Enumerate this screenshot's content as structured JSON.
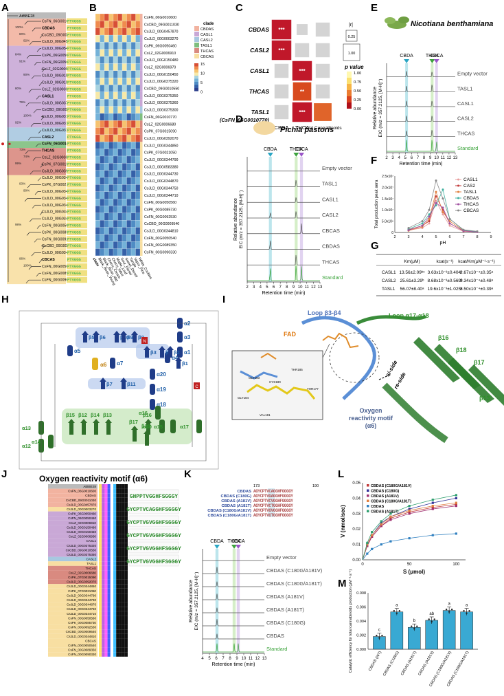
{
  "panels": {
    "A": "A",
    "B": "B",
    "C": "C",
    "D": "D",
    "E": "E",
    "F": "F",
    "G": "G",
    "H": "H",
    "I": "I",
    "J": "J",
    "K": "K",
    "L": "L",
    "M": "M"
  },
  "tree": {
    "outgroup": "AtBBE28",
    "leaves": [
      {
        "label": "CsFN_06G0010600",
        "clade": "CBDAS"
      },
      {
        "label": "CBDAS",
        "clade": "CBDAS"
      },
      {
        "label": "CsCBD_09G0011030",
        "clade": "CBDAS"
      },
      {
        "label": "CsJLD_00G0457870",
        "clade": "CBDAS"
      },
      {
        "label": "CsJLD_00G0542580",
        "clade": "CASL1"
      },
      {
        "label": "CsPK_06G0050460",
        "clade": "CASL1"
      },
      {
        "label": "CsFN_06G0050460",
        "clade": "CASL1"
      },
      {
        "label": "CsLZ_02G0006910",
        "clade": "CASL1"
      },
      {
        "label": "CsJLD_00G0150480",
        "clade": "CASL1"
      },
      {
        "label": "CsJLD_00G0150450",
        "clade": "CASL1"
      },
      {
        "label": "CsLZ_02G0006930",
        "clade": "CASL1"
      },
      {
        "label": "CASL1",
        "clade": "CASL1"
      },
      {
        "label": "CsJLD_00G0375320",
        "clade": "CASL1"
      },
      {
        "label": "CsCBD_09G0010550",
        "clade": "CASL1"
      },
      {
        "label": "CsJLD_00G0375350",
        "clade": "CASL1"
      },
      {
        "label": "CsJLD_00G0375360",
        "clade": "CASL1"
      },
      {
        "label": "CsJLD_00G0375300",
        "clade": "CASL2"
      },
      {
        "label": "CASL2",
        "clade": "CASL2"
      },
      {
        "label": "CsFN_06G0010770",
        "clade": "TASL1"
      },
      {
        "label": "THCAS",
        "clade": "THCAS"
      },
      {
        "label": "CsLZ_02G0006680",
        "clade": "THCAS"
      },
      {
        "label": "CsPK_07G0015090",
        "clade": "THCAS"
      },
      {
        "label": "CsJLD_00G0392070",
        "clade": "THCAS"
      },
      {
        "label": "CsJLD_00G0344850",
        "clade": "CBCAS"
      },
      {
        "label": "CsPK_07G0021050",
        "clade": "CBCAS"
      },
      {
        "label": "CsJLD_00G0344790",
        "clade": "CBCAS"
      },
      {
        "label": "CsJLD_00G0344730",
        "clade": "CBCAS"
      },
      {
        "label": "CsJLD_00G0344870",
        "clade": "CBCAS"
      },
      {
        "label": "CsJLD_00G0344750",
        "clade": "CBCAS"
      },
      {
        "label": "CsJLD_00G0344710",
        "clade": "CBCAS"
      },
      {
        "label": "CsFN_00G0050560",
        "clade": "CBCAS"
      },
      {
        "label": "CsPK_00G0085730",
        "clade": "CBCAS"
      },
      {
        "label": "CsFN_00G0092530",
        "clade": "CBCAS"
      },
      {
        "label": "CsCBD_00G0009540",
        "clade": "CBCAS"
      },
      {
        "label": "CsJLD_00G0344810",
        "clade": "CBCAS"
      },
      {
        "label": "CBCAS",
        "clade": "CBCAS"
      },
      {
        "label": "CsFN_00G0050540",
        "clade": "CBCAS"
      },
      {
        "label": "CsFN_00G0089350",
        "clade": "CBCAS"
      },
      {
        "label": "CsFN_00G0090330",
        "clade": "CBCAS"
      }
    ],
    "bootstrap": [
      "100%",
      "80%",
      "92%",
      "84%",
      "91%",
      "90%",
      "80%",
      "79%",
      "100%",
      "92%",
      "73%",
      "74%",
      "99%",
      "93%",
      "90%",
      "98%",
      "96%",
      "100%"
    ],
    "motif": "PTVGGG"
  },
  "heatmap": {
    "rows": [
      "CsFN_06G0010600",
      "CsCBD_09G0011030",
      "CsJLD_00G0457870",
      "CsJLD_00G0003270",
      "CsPK_06G0050460",
      "CsLZ_02G0006910",
      "CsJLD_00G0150480",
      "CsLZ_02G0006970",
      "CsJLD_00G0150450",
      "CsJLD_00G0375320",
      "CsCBD_09G0010550",
      "CsJLD_00G0375350",
      "CsJLD_00G0375360",
      "CsJLD_00G0375300",
      "CsFN_06G0010770",
      "CsLZ_02G0006680",
      "CsPK_07G0015090",
      "CsJLD_00G0392070",
      "CsJLD_00G0344850",
      "CsPK_07G0021050",
      "CsJLD_00G0344790",
      "CsJLD_00G0583380",
      "CsJLD_00G0344730",
      "CsJLD_00G0344870",
      "CsJLD_00G0344750",
      "CsJLD_00G0344710",
      "CsFN_00G0050560",
      "CsPK_00G0085730",
      "CsFN_00G0092530",
      "CsCBD_00G0009540",
      "CsJLD_00G0344810",
      "CsFN_00G0050540",
      "CsFN_00G0089350",
      "CsFN_00G0090330"
    ],
    "columns": [
      "Black_Bean_Young",
      "Black_Bean_Mid",
      "Cherry_Cream",
      "Cherry_Wine",
      "Maple_Leaf",
      "Sour_Diesel",
      "Sweet_Diesel",
      "Tangie",
      "Vapor_Pine",
      "White_Cookies"
    ],
    "legend_title": "clade",
    "legend_items": [
      "CBDAS",
      "CASL1",
      "CASL2",
      "TASL1",
      "THCAS",
      "CBCAS"
    ],
    "scale_ticks": [
      "15",
      "10",
      "5",
      "0"
    ],
    "clade_colors": {
      "CBDAS": "#f2b3a0",
      "CASL1": "#c9a8d6",
      "CASL2": "#a8c8e0",
      "TASL1": "#7fbf7f",
      "THCAS": "#d98a80",
      "CBCAS": "#f8dfa2"
    }
  },
  "correlation": {
    "rows": [
      "CBDAS",
      "CASL2",
      "CASL1",
      "THCAS",
      "TASL1"
    ],
    "row_note": "(CsFN_06G0010770)",
    "columns": [
      "CBDA",
      "THCA",
      "Total Cannabinoids"
    ],
    "abs_r_label": "|r|",
    "r_ticks": [
      "0.25",
      "1.00"
    ],
    "p_label": "p value",
    "p_ticks": [
      "1.00",
      "0.75",
      "0.50",
      "0.25",
      "0.00"
    ],
    "cells": [
      {
        "row": 0,
        "col": 0,
        "r": 1.0,
        "p": 0.0,
        "stars": "***"
      },
      {
        "row": 0,
        "col": 1,
        "r": 0.3,
        "p": 1.0,
        "stars": ""
      },
      {
        "row": 0,
        "col": 2,
        "r": 0.55,
        "p": 1.0,
        "stars": ""
      },
      {
        "row": 1,
        "col": 0,
        "r": 1.0,
        "p": 0.0,
        "stars": "***"
      },
      {
        "row": 1,
        "col": 1,
        "r": 0.55,
        "p": 1.0,
        "stars": ""
      },
      {
        "row": 1,
        "col": 2,
        "r": 0.55,
        "p": 1.0,
        "stars": ""
      },
      {
        "row": 2,
        "col": 0,
        "r": 0.55,
        "p": 1.0,
        "stars": ""
      },
      {
        "row": 2,
        "col": 1,
        "r": 1.0,
        "p": 0.0,
        "stars": "***"
      },
      {
        "row": 2,
        "col": 2,
        "r": 0.55,
        "p": 1.0,
        "stars": ""
      },
      {
        "row": 3,
        "col": 0,
        "r": 0.55,
        "p": 1.0,
        "stars": ""
      },
      {
        "row": 3,
        "col": 1,
        "r": 0.9,
        "p": 0.08,
        "stars": "**"
      },
      {
        "row": 3,
        "col": 2,
        "r": 0.55,
        "p": 1.0,
        "stars": ""
      },
      {
        "row": 4,
        "col": 0,
        "r": 0.55,
        "p": 1.0,
        "stars": ""
      },
      {
        "row": 4,
        "col": 1,
        "r": 1.0,
        "p": 0.0,
        "stars": "***"
      },
      {
        "row": 4,
        "col": 2,
        "r": 0.85,
        "p": 0.1,
        "stars": ""
      }
    ]
  },
  "pichia": {
    "title": "Pichia pastoris",
    "compounds": [
      "CBDA",
      "THCA",
      "CBCA"
    ],
    "traces": [
      "Empty vector",
      "TASL1",
      "CASL1",
      "CASL2",
      "CBCAS",
      "CBDAS",
      "THCAS",
      "Standard"
    ],
    "ylabel_line1": "Relative abundance",
    "ylabel_line2": "EIC (m/z = 357.2125, [M-H]⁻)",
    "xlabel": "Retention time (min)",
    "xticks": [
      "2",
      "3",
      "4",
      "5",
      "6",
      "7",
      "8",
      "9",
      "10",
      "11",
      "12",
      "13"
    ]
  },
  "benthamiana": {
    "title": "Nicotiana benthamiana",
    "compounds": [
      "CBDA",
      "THCA",
      "CBCA"
    ],
    "traces": [
      "Empty vector",
      "TASL1",
      "CASL1",
      "CASL2",
      "THCAS",
      "Standard"
    ],
    "ylabel_line1": "Relative abundance",
    "ylabel_line2": "EIC (m/z = 357.2125, [M-H]⁻)",
    "xlabel": "Retention time (min)",
    "xticks": [
      "2",
      "3",
      "4",
      "5",
      "6",
      "7",
      "8",
      "9",
      "10",
      "11",
      "12",
      "13"
    ]
  },
  "chart_data": [
    {
      "type": "line",
      "panel": "F",
      "xlabel": "pH",
      "ylabel": "Total production peak aera",
      "x": [
        3,
        4,
        4.5,
        5,
        5.5,
        6,
        7,
        8
      ],
      "xlim": [
        2,
        9
      ],
      "ylim": [
        0,
        25000000
      ],
      "ytick_labels": [
        "0",
        "5.0x10⁶",
        "1.0x10⁷",
        "1.5x10⁷",
        "2.0x10⁷",
        "2.5x10⁷"
      ],
      "series": [
        {
          "name": "CASL1",
          "color": "#e89c9c",
          "values": [
            1000000,
            2000000,
            4000000,
            14000000,
            8000000,
            3000000,
            500000,
            200000
          ]
        },
        {
          "name": "CAS2",
          "color": "#c23b3b",
          "values": [
            1200000,
            3000000,
            5000000,
            16000000,
            10000000,
            4000000,
            600000,
            300000
          ]
        },
        {
          "name": "TASL1",
          "color": "#e08040",
          "values": [
            800000,
            2500000,
            6000000,
            18000000,
            9000000,
            5000000,
            800000,
            300000
          ]
        },
        {
          "name": "CBDAS",
          "color": "#40b0a0",
          "values": [
            1500000,
            4000000,
            8000000,
            12000000,
            19000000,
            6000000,
            1000000,
            400000
          ]
        },
        {
          "name": "THCAS",
          "color": "#a050a0",
          "values": [
            1000000,
            3000000,
            7000000,
            13000000,
            11000000,
            4000000,
            700000,
            200000
          ]
        },
        {
          "name": "CBCAS",
          "color": "#888888",
          "values": [
            2000000,
            5000000,
            10000000,
            23000000,
            15000000,
            6000000,
            1200000,
            500000
          ]
        }
      ]
    },
    {
      "type": "line",
      "panel": "L",
      "xlabel": "S (μmol)",
      "ylabel": "V (nmol/sec)",
      "x": [
        0,
        5,
        10,
        20,
        30,
        50,
        75,
        100
      ],
      "xlim": [
        0,
        110
      ],
      "ylim": [
        0,
        0.05
      ],
      "ytick_labels": [
        "0.00",
        "0.01",
        "0.02",
        "0.03",
        "0.04",
        "0.05"
      ],
      "xtick_labels": [
        "0",
        "50",
        "100"
      ],
      "series": [
        {
          "name": "CBDAS (C180G/A181V)",
          "color": "#c23b3b",
          "values": [
            0,
            0.009,
            0.015,
            0.022,
            0.027,
            0.031,
            0.034,
            0.036
          ]
        },
        {
          "name": "CBDAS (C180G)",
          "color": "#333399",
          "values": [
            0,
            0.01,
            0.016,
            0.024,
            0.028,
            0.033,
            0.037,
            0.04
          ]
        },
        {
          "name": "CBDAS (A181V)",
          "color": "#a03070",
          "values": [
            0,
            0.009,
            0.015,
            0.022,
            0.026,
            0.03,
            0.033,
            0.035
          ]
        },
        {
          "name": "CBDAS (C180G/A181T)",
          "color": "#e08040",
          "values": [
            0,
            0.01,
            0.016,
            0.023,
            0.028,
            0.032,
            0.035,
            0.037
          ]
        },
        {
          "name": "CBDAS",
          "color": "#3080c0",
          "values": [
            0,
            0.004,
            0.007,
            0.01,
            0.012,
            0.014,
            0.016,
            0.017
          ]
        },
        {
          "name": "CBDAS (A181T)",
          "color": "#30a070",
          "values": [
            0,
            0.011,
            0.018,
            0.025,
            0.03,
            0.035,
            0.039,
            0.042
          ]
        }
      ]
    },
    {
      "type": "bar",
      "panel": "M",
      "ylabel": "Catalytic efficiency for total cannabinoids production (μM⁻¹·s⁻¹)",
      "categories": [
        "CBDAS (WT)",
        "CBDAS (C180G)",
        "CBDAS (A181T)",
        "CBDAS (A181V)",
        "CBDAS (C180G/A181V)",
        "CBDAS (C180G/A181T)"
      ],
      "values": [
        0.0018,
        0.0053,
        0.0031,
        0.0041,
        0.0055,
        0.0053
      ],
      "letters": [
        "c",
        "a",
        "b",
        "ab",
        "a",
        "a"
      ],
      "ylim": [
        0,
        0.008
      ],
      "ytick_labels": [
        "0.000",
        "0.002",
        "0.004",
        "0.006",
        "0.008"
      ]
    }
  ],
  "kinetics": {
    "headers": [
      "",
      "Km(μM)",
      "kcat(s⁻¹)",
      "kcat/Km(μM⁻¹·s⁻¹)"
    ],
    "rows": [
      [
        "CASL1",
        "13.56±2.09ᵇᶜ",
        "3.63x10⁻³±0.404ᶜ",
        "2.67x10⁻⁴±0.35ᵃ"
      ],
      [
        "CASL2",
        "25.61±3.29ᵇ",
        "8.68x10⁻³±0.569ᵇ",
        "3.34x10⁻⁴±0.48ᵃ"
      ],
      [
        "TASL1",
        "56.07±8.40ᵃ",
        "19.6x10⁻³±1.025ᵃ",
        "3.50x10⁻⁴±0.39ᵃ"
      ]
    ]
  },
  "topology": {
    "labels": [
      "β5",
      "β6",
      "β10",
      "β8",
      "β9",
      "α7",
      "α6",
      "β7",
      "β11",
      "α5",
      "α2",
      "β3",
      "β4",
      "β2",
      "β1",
      "α3",
      "α4",
      "α1",
      "α20",
      "α19",
      "α18",
      "α16",
      "β15",
      "β12",
      "β14",
      "β13",
      "β16",
      "α10",
      "α15",
      "α17",
      "α13",
      "α12",
      "α14",
      "β17",
      "β18",
      "N",
      "C"
    ]
  },
  "structure": {
    "labels": [
      "Loop β3-β4",
      "Loop α17-α18",
      "FAD",
      "β16",
      "β18",
      "β17",
      "β13",
      "si-side",
      "re-side",
      "Oxygen reactivity motif (α6)"
    ],
    "residues": [
      "GLY183",
      "GLY184",
      "THR185",
      "THR177",
      "VAL181",
      "CYS180"
    ]
  },
  "motif_panel": {
    "title": "Oxygen reactivity motif (α6)",
    "sequences": [
      "AtBBE28",
      "CsFN_06G0010600",
      "CBDAS",
      "CsCBD_09G0011030",
      "CsJLD_00G0457870",
      "CsJLD_00G0003270",
      "CsPK_06G0050460",
      "CsFN_06G0050460",
      "CsLZ_02G0006910",
      "CsJLD_00G0150480",
      "CsJLD_00G0150450",
      "CsLZ_02G0006930",
      "CASL1",
      "CsJLD_00G0375320",
      "CsCBD_09G0010550",
      "CsJLD_00G0375350",
      "CASL2",
      "TASL1",
      "THCAS",
      "CsLZ_02G0006680",
      "CsPK_07G0015090",
      "CsJLD_00G0392070",
      "CsJLD_00G0344850",
      "CsPK_07G0021050",
      "CsJLD_00G0344790",
      "CsJLD_00G0344730",
      "CsJLD_00G0344870",
      "CsJLD_00G0344750",
      "CsJLD_00G0344710",
      "CsFN_00G0050560",
      "CsPK_00G0085730",
      "CsFN_00G0092530",
      "CsCBD_00G0009540",
      "CsJLD_00G0344810",
      "CBCAS",
      "CsFN_00G0050540",
      "CsFN_00G0089350",
      "CsFN_00G0090330"
    ],
    "logos": [
      "GHPPTVGGHFSGGGY",
      "GYCPTVCAGGHFSGGGY",
      "GYCPTVGVGGHFSGGGY",
      "GYCPTVGVGGHFSGGGY",
      "GYCPTVGVGGHFSGGGY",
      "GYCPTVGVGGHFSGGGY"
    ]
  },
  "mutants": {
    "start": "173",
    "end": "190",
    "sequences": [
      {
        "name": "CBDAS",
        "seq": "AGYCPTVCAGGHFGGGGY"
      },
      {
        "name": "CBDAS (C180G)",
        "seq": "AGYCPTVGAGGHFGGGGY"
      },
      {
        "name": "CBDAS (A181V)",
        "seq": "AGYCPTVCVGGHFGGGGY"
      },
      {
        "name": "CBDAS (A181T)",
        "seq": "AGYCPTVCTGGHFGGGGY"
      },
      {
        "name": "CBDAS (C180G/A181V)",
        "seq": "AGYCPTVGVGGHFGGGGY"
      },
      {
        "name": "CBDAS (C180G/A181T)",
        "seq": "AGYCPTVGTGGHFGGGGY"
      }
    ],
    "traces": [
      "Empty vector",
      "CBDAS (C180G/A181V)",
      "CBDAS (C180G/A181T)",
      "CBDAS (A181V)",
      "CBDAS (A181T)",
      "CBDAS (C180G)",
      "CBDAS",
      "Standard"
    ],
    "compounds": [
      "CBDA",
      "THCA",
      "CBCA"
    ],
    "ylabel_line1": "Relative abundance",
    "ylabel_line2": "EIC (m/z = 357.2125, [M-H]⁻)",
    "xlabel": "Retention time (min)",
    "xticks": [
      "4",
      "5",
      "6",
      "7",
      "8",
      "9",
      "10",
      "11",
      "12",
      "13"
    ]
  }
}
